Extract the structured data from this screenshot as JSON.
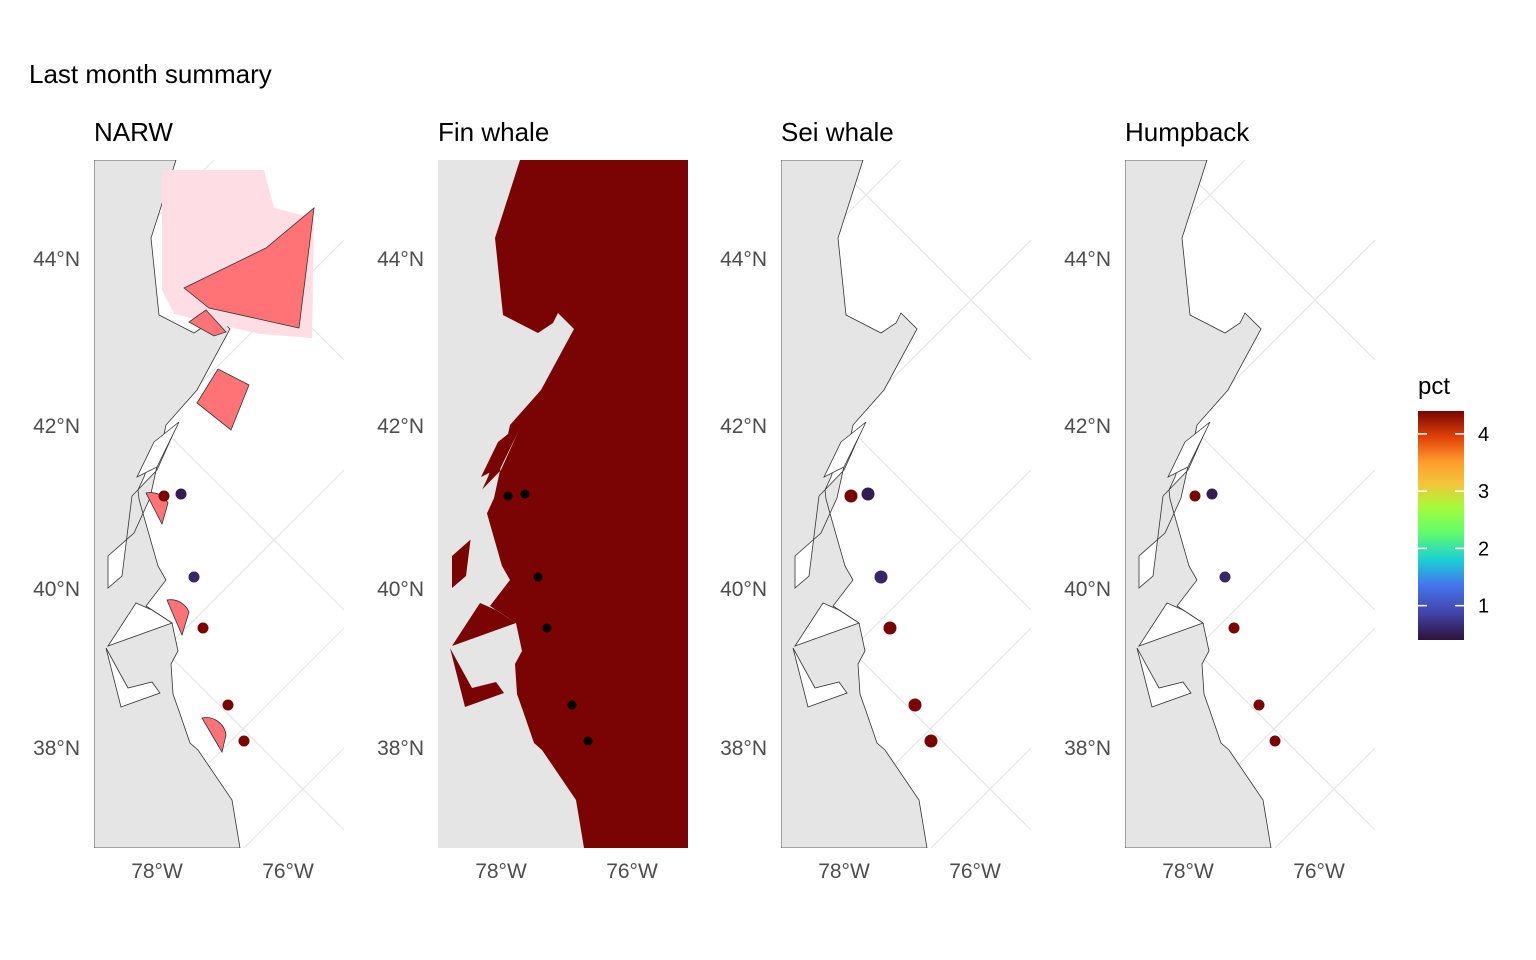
{
  "title": "Last month summary",
  "panels": [
    {
      "name": "NARW",
      "layer": "zones"
    },
    {
      "name": "Fin whale",
      "layer": "fill"
    },
    {
      "name": "Sei whale",
      "layer": "points_large"
    },
    {
      "name": "Humpback",
      "layer": "points"
    }
  ],
  "lat_ticks": [
    "44°N",
    "42°N",
    "40°N",
    "38°N"
  ],
  "lon_ticks": [
    "78°W",
    "76°W"
  ],
  "points": [
    {
      "pct": 4.4
    },
    {
      "pct": 0.5
    },
    {
      "pct": 0.6
    },
    {
      "pct": 4.4
    },
    {
      "pct": 4.4
    },
    {
      "pct": 4.4
    }
  ],
  "legend": {
    "title": "pct",
    "ticks": [
      "1",
      "2",
      "3",
      "4"
    ],
    "tick_values": [
      1,
      2,
      3,
      4
    ],
    "range": [
      0.4,
      4.4
    ]
  },
  "colors": {
    "land": "#e5e5e5",
    "fin_fill": "#7a0403",
    "zone_light": "#ffdde4",
    "zone_strong": "#ff7377",
    "grid": "#e6e6e6"
  }
}
